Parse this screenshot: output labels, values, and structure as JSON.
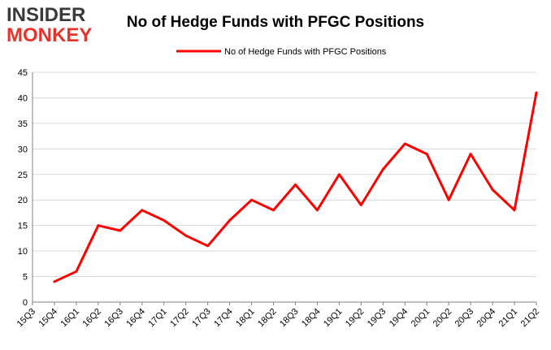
{
  "logo": {
    "line1": "INSIDER",
    "line2": "MONKEY"
  },
  "colors": {
    "series": "#ff0000",
    "logo_red": "#e8332a",
    "logo_dark": "#3a3a3a",
    "grid": "#d9d9d9",
    "axis": "#808080"
  },
  "chart_data": {
    "type": "line",
    "title": "No of Hedge Funds with PFGC Positions",
    "xlabel": "",
    "ylabel": "",
    "categories": [
      "15Q3",
      "15Q4",
      "16Q1",
      "16Q2",
      "16Q3",
      "16Q4",
      "17Q1",
      "17Q2",
      "17Q3",
      "17Q4",
      "18Q1",
      "18Q2",
      "18Q3",
      "18Q4",
      "19Q1",
      "19Q2",
      "19Q3",
      "19Q4",
      "20Q1",
      "20Q2",
      "20Q3",
      "20Q4",
      "21Q1",
      "21Q2"
    ],
    "series": [
      {
        "name": "No of Hedge Funds with PFGC Positions",
        "values": [
          null,
          4,
          6,
          15,
          14,
          18,
          16,
          13,
          11,
          16,
          20,
          18,
          23,
          18,
          25,
          19,
          26,
          31,
          29,
          20,
          29,
          22,
          18,
          41
        ]
      }
    ],
    "yticks": [
      "0",
      "5",
      "10",
      "15",
      "20",
      "25",
      "30",
      "35",
      "40",
      "45"
    ],
    "ylim": [
      0,
      45
    ],
    "grid": true,
    "legend_position": "top-center"
  }
}
